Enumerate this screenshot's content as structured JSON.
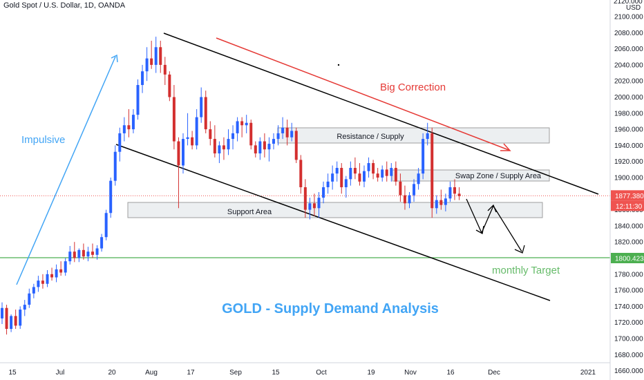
{
  "chart_title": "Gold Spot / U.S. Dollar, 1D, OANDA",
  "price_axis": {
    "unit": "USD",
    "top_label": "2120.000",
    "tick_labels": [
      "2100.000",
      "2080.000",
      "2060.000",
      "2040.000",
      "2020.000",
      "2000.000",
      "1980.000",
      "1960.000",
      "1940.000",
      "1920.000",
      "1900.000",
      "1880.000",
      "1860.000",
      "1840.000",
      "1820.000",
      "1800.000",
      "1780.000",
      "1760.000",
      "1740.000",
      "1720.000",
      "1700.000",
      "1680.000",
      "1660.000"
    ],
    "current_price": "1877.380",
    "countdown": "12:11:30",
    "target_price": "1800.423"
  },
  "time_axis": {
    "labels": [
      "15",
      "Jul",
      "20",
      "Aug",
      "17",
      "Sep",
      "15",
      "Oct",
      "19",
      "Nov",
      "16",
      "Dec",
      "2021"
    ]
  },
  "annotations": {
    "impulsive": "Impulsive",
    "big_correction": "Big Correction",
    "resistance_supply": "Resistance / Supply",
    "swap_zone": "Swap Zone / Supply Area",
    "support_area": "Support Area",
    "monthly_target": "monthly Target",
    "analysis_title": "GOLD - Supply Demand Analysis"
  },
  "colors": {
    "bull": "#2962ff",
    "bear": "#d32f2f",
    "impulsive": "#42a5f5",
    "big_correction": "#e53935",
    "monthly_target": "#66bb6a",
    "analysis_title": "#42a5f5",
    "current_price_badge": "#ef5350",
    "target_badge": "#4caf50",
    "zone_fill": "#eceff1",
    "channel": "#000000"
  },
  "chart_data": {
    "type": "candlestick",
    "title": "Gold Spot / U.S. Dollar, 1D, OANDA",
    "ylim": [
      1660,
      2120
    ],
    "y_unit": "USD",
    "grid": false,
    "candles_ohlc": [
      [
        1725,
        1745,
        1718,
        1738
      ],
      [
        1738,
        1742,
        1705,
        1712
      ],
      [
        1712,
        1730,
        1708,
        1728
      ],
      [
        1728,
        1736,
        1712,
        1716
      ],
      [
        1716,
        1740,
        1712,
        1736
      ],
      [
        1736,
        1748,
        1728,
        1742
      ],
      [
        1742,
        1762,
        1738,
        1756
      ],
      [
        1756,
        1768,
        1750,
        1764
      ],
      [
        1764,
        1778,
        1758,
        1772
      ],
      [
        1772,
        1780,
        1762,
        1768
      ],
      [
        1768,
        1785,
        1764,
        1780
      ],
      [
        1780,
        1788,
        1772,
        1776
      ],
      [
        1776,
        1792,
        1770,
        1786
      ],
      [
        1786,
        1796,
        1778,
        1782
      ],
      [
        1782,
        1800,
        1778,
        1796
      ],
      [
        1796,
        1815,
        1792,
        1808
      ],
      [
        1808,
        1820,
        1795,
        1800
      ],
      [
        1800,
        1812,
        1795,
        1810
      ],
      [
        1810,
        1818,
        1798,
        1802
      ],
      [
        1802,
        1814,
        1796,
        1808
      ],
      [
        1808,
        1818,
        1800,
        1804
      ],
      [
        1804,
        1816,
        1798,
        1812
      ],
      [
        1812,
        1830,
        1808,
        1826
      ],
      [
        1826,
        1860,
        1822,
        1856
      ],
      [
        1856,
        1900,
        1850,
        1896
      ],
      [
        1896,
        1940,
        1890,
        1932
      ],
      [
        1932,
        1962,
        1920,
        1955
      ],
      [
        1955,
        1975,
        1945,
        1965
      ],
      [
        1965,
        1985,
        1950,
        1960
      ],
      [
        1960,
        1985,
        1955,
        1978
      ],
      [
        1978,
        2022,
        1972,
        2015
      ],
      [
        2015,
        2040,
        2005,
        2032
      ],
      [
        2032,
        2062,
        2020,
        2048
      ],
      [
        2048,
        2070,
        2035,
        2040
      ],
      [
        2040,
        2075,
        2030,
        2062
      ],
      [
        2062,
        2070,
        2030,
        2040
      ],
      [
        2040,
        2050,
        2015,
        2028
      ],
      [
        2028,
        2032,
        1995,
        2000
      ],
      [
        2000,
        2015,
        1935,
        1945
      ],
      [
        1945,
        1950,
        1862,
        1915
      ],
      [
        1915,
        1955,
        1905,
        1948
      ],
      [
        1948,
        1980,
        1940,
        1950
      ],
      [
        1950,
        1958,
        1935,
        1940
      ],
      [
        1940,
        1985,
        1935,
        1975
      ],
      [
        1975,
        2012,
        1968,
        2000
      ],
      [
        2000,
        2008,
        1955,
        1960
      ],
      [
        1960,
        1970,
        1940,
        1948
      ],
      [
        1948,
        1965,
        1925,
        1930
      ],
      [
        1930,
        1945,
        1918,
        1940
      ],
      [
        1940,
        1950,
        1922,
        1935
      ],
      [
        1935,
        1960,
        1928,
        1948
      ],
      [
        1948,
        1965,
        1935,
        1955
      ],
      [
        1955,
        1975,
        1945,
        1970
      ],
      [
        1970,
        1975,
        1950,
        1965
      ],
      [
        1965,
        1978,
        1955,
        1968
      ],
      [
        1968,
        1972,
        1935,
        1940
      ],
      [
        1940,
        1945,
        1925,
        1930
      ],
      [
        1930,
        1950,
        1922,
        1945
      ],
      [
        1945,
        1955,
        1925,
        1935
      ],
      [
        1935,
        1950,
        1920,
        1942
      ],
      [
        1942,
        1955,
        1935,
        1948
      ],
      [
        1948,
        1965,
        1940,
        1955
      ],
      [
        1955,
        1975,
        1948,
        1962
      ],
      [
        1962,
        1972,
        1940,
        1950
      ],
      [
        1950,
        1968,
        1945,
        1958
      ],
      [
        1958,
        1962,
        1918,
        1922
      ],
      [
        1922,
        1928,
        1880,
        1888
      ],
      [
        1888,
        1898,
        1850,
        1860
      ],
      [
        1860,
        1875,
        1848,
        1868
      ],
      [
        1868,
        1880,
        1852,
        1862
      ],
      [
        1862,
        1882,
        1850,
        1875
      ],
      [
        1875,
        1895,
        1868,
        1888
      ],
      [
        1888,
        1905,
        1880,
        1895
      ],
      [
        1895,
        1915,
        1885,
        1905
      ],
      [
        1905,
        1920,
        1895,
        1912
      ],
      [
        1912,
        1918,
        1880,
        1888
      ],
      [
        1888,
        1902,
        1875,
        1898
      ],
      [
        1898,
        1920,
        1890,
        1912
      ],
      [
        1912,
        1925,
        1898,
        1905
      ],
      [
        1905,
        1918,
        1890,
        1895
      ],
      [
        1895,
        1915,
        1888,
        1908
      ],
      [
        1908,
        1925,
        1900,
        1918
      ],
      [
        1918,
        1922,
        1898,
        1905
      ],
      [
        1905,
        1912,
        1895,
        1900
      ],
      [
        1900,
        1915,
        1895,
        1910
      ],
      [
        1910,
        1920,
        1895,
        1902
      ],
      [
        1902,
        1918,
        1895,
        1912
      ],
      [
        1912,
        1920,
        1890,
        1895
      ],
      [
        1895,
        1905,
        1870,
        1878
      ],
      [
        1878,
        1890,
        1860,
        1868
      ],
      [
        1868,
        1882,
        1862,
        1878
      ],
      [
        1878,
        1898,
        1870,
        1892
      ],
      [
        1892,
        1912,
        1885,
        1905
      ],
      [
        1905,
        1955,
        1898,
        1948
      ],
      [
        1948,
        1968,
        1940,
        1955
      ],
      [
        1955,
        1962,
        1850,
        1862
      ],
      [
        1862,
        1878,
        1855,
        1872
      ],
      [
        1872,
        1885,
        1860,
        1866
      ],
      [
        1866,
        1880,
        1858,
        1874
      ],
      [
        1874,
        1895,
        1870,
        1888
      ],
      [
        1888,
        1898,
        1872,
        1880
      ],
      [
        1880,
        1888,
        1872,
        1877
      ]
    ]
  }
}
